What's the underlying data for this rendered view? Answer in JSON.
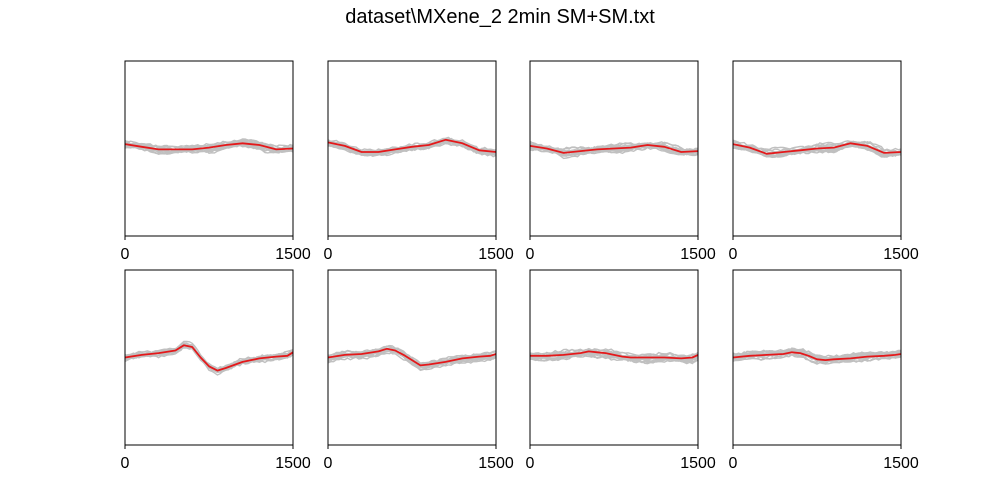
{
  "title": "dataset\\MXene_2 2min SM+SM.txt",
  "colors": {
    "trace": "#c0c0c0",
    "mean": "#e4181a",
    "axis": "#000000"
  },
  "chart_data": [
    {
      "type": "line",
      "row": 1,
      "col": 1,
      "xlim": [
        0,
        1500
      ],
      "ylim": [
        -1,
        1
      ],
      "xticks": [
        0,
        1500
      ],
      "xtick_labels": [
        "0",
        "1500"
      ],
      "mean": {
        "x": [
          0,
          150,
          300,
          450,
          600,
          750,
          900,
          1050,
          1200,
          1350,
          1500
        ],
        "y": [
          0.05,
          0.02,
          -0.01,
          -0.01,
          -0.01,
          0.01,
          0.04,
          0.06,
          0.04,
          -0.01,
          0.0
        ]
      }
    },
    {
      "type": "line",
      "row": 1,
      "col": 2,
      "xlim": [
        0,
        1500
      ],
      "ylim": [
        -1,
        1
      ],
      "xticks": [
        0,
        1500
      ],
      "xtick_labels": [
        "0",
        "1500"
      ],
      "mean": {
        "x": [
          0,
          150,
          300,
          450,
          600,
          750,
          900,
          1050,
          1200,
          1350,
          1500
        ],
        "y": [
          0.07,
          0.03,
          -0.04,
          -0.04,
          -0.01,
          0.02,
          0.04,
          0.1,
          0.06,
          -0.02,
          -0.04
        ]
      }
    },
    {
      "type": "line",
      "row": 1,
      "col": 3,
      "xlim": [
        0,
        1500
      ],
      "ylim": [
        -1,
        1
      ],
      "xticks": [
        0,
        1500
      ],
      "xtick_labels": [
        "0",
        "1500"
      ],
      "mean": {
        "x": [
          0,
          150,
          300,
          450,
          600,
          750,
          900,
          1050,
          1200,
          1350,
          1500
        ],
        "y": [
          0.03,
          0.0,
          -0.05,
          -0.03,
          -0.01,
          0.0,
          0.01,
          0.04,
          0.02,
          -0.04,
          -0.03
        ]
      }
    },
    {
      "type": "line",
      "row": 1,
      "col": 4,
      "xlim": [
        0,
        1500
      ],
      "ylim": [
        -1,
        1
      ],
      "xticks": [
        0,
        1500
      ],
      "xtick_labels": [
        "0",
        "1500"
      ],
      "mean": {
        "x": [
          0,
          150,
          300,
          450,
          600,
          750,
          900,
          1050,
          1200,
          1350,
          1500
        ],
        "y": [
          0.05,
          0.01,
          -0.06,
          -0.04,
          -0.02,
          0.0,
          0.01,
          0.06,
          0.03,
          -0.05,
          -0.04
        ]
      }
    },
    {
      "type": "line",
      "row": 2,
      "col": 1,
      "xlim": [
        0,
        1500
      ],
      "ylim": [
        -1,
        1
      ],
      "xticks": [
        0,
        1500
      ],
      "xtick_labels": [
        "0",
        "1500"
      ],
      "mean": {
        "x": [
          0,
          150,
          300,
          450,
          525,
          600,
          675,
          750,
          825,
          900,
          1050,
          1200,
          1350,
          1450,
          1500
        ],
        "y": [
          0.0,
          0.03,
          0.05,
          0.08,
          0.14,
          0.12,
          0.0,
          -0.1,
          -0.15,
          -0.12,
          -0.05,
          -0.01,
          0.01,
          0.02,
          0.06
        ]
      }
    },
    {
      "type": "line",
      "row": 2,
      "col": 2,
      "xlim": [
        0,
        1500
      ],
      "ylim": [
        -1,
        1
      ],
      "xticks": [
        0,
        1500
      ],
      "xtick_labels": [
        "0",
        "1500"
      ],
      "mean": {
        "x": [
          0,
          150,
          300,
          450,
          525,
          600,
          675,
          750,
          825,
          900,
          1050,
          1200,
          1350,
          1450,
          1500
        ],
        "y": [
          0.0,
          0.03,
          0.04,
          0.07,
          0.1,
          0.08,
          0.03,
          -0.03,
          -0.09,
          -0.08,
          -0.05,
          -0.01,
          0.01,
          0.02,
          0.04
        ]
      }
    },
    {
      "type": "line",
      "row": 2,
      "col": 3,
      "xlim": [
        0,
        1500
      ],
      "ylim": [
        -1,
        1
      ],
      "xticks": [
        0,
        1500
      ],
      "xtick_labels": [
        "0",
        "1500"
      ],
      "mean": {
        "x": [
          0,
          150,
          300,
          450,
          525,
          600,
          675,
          750,
          825,
          900,
          1050,
          1200,
          1350,
          1450,
          1500
        ],
        "y": [
          0.02,
          0.02,
          0.03,
          0.05,
          0.07,
          0.06,
          0.05,
          0.03,
          0.01,
          0.0,
          0.0,
          0.0,
          -0.01,
          0.0,
          0.03
        ]
      }
    },
    {
      "type": "line",
      "row": 2,
      "col": 4,
      "xlim": [
        0,
        1500
      ],
      "ylim": [
        -1,
        1
      ],
      "xticks": [
        0,
        1500
      ],
      "xtick_labels": [
        "0",
        "1500"
      ],
      "mean": {
        "x": [
          0,
          150,
          300,
          450,
          525,
          600,
          675,
          750,
          825,
          900,
          1050,
          1200,
          1350,
          1450,
          1500
        ],
        "y": [
          0.0,
          0.02,
          0.03,
          0.04,
          0.06,
          0.05,
          0.02,
          -0.02,
          -0.03,
          -0.02,
          -0.01,
          0.01,
          0.02,
          0.03,
          0.04
        ]
      }
    }
  ]
}
